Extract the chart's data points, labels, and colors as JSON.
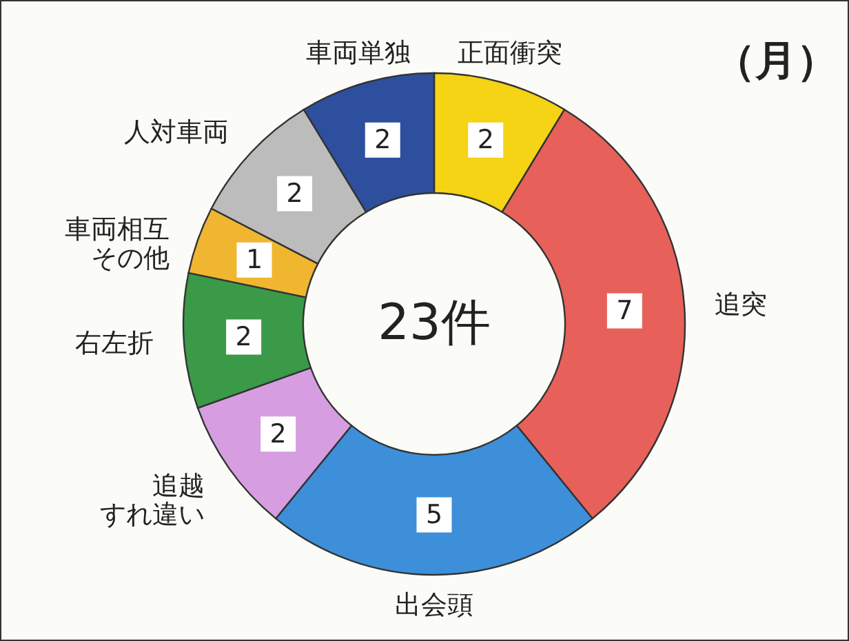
{
  "chart_data": {
    "type": "donut",
    "categories": [
      "正面衝突",
      "追突",
      "出会頭",
      "追越すれ違い",
      "右左折",
      "車両相互その他",
      "人対車両",
      "車両単独"
    ],
    "values": [
      2,
      7,
      5,
      2,
      2,
      1,
      2,
      2
    ],
    "colors": [
      "#f5d315",
      "#e8605a",
      "#3d8fd9",
      "#d69ee0",
      "#3a9a48",
      "#f0b630",
      "#bcbcbc",
      "#2e4f9e"
    ],
    "data_labels": true,
    "annotations": [
      "23件",
      "（月）"
    ]
  }
}
